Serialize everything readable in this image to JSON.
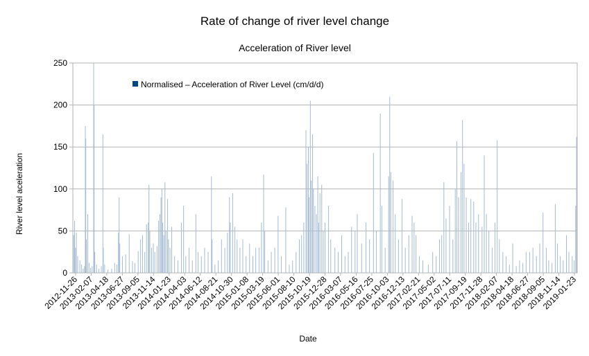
{
  "chart_data": {
    "type": "bar",
    "title": "Rate of change of river level change",
    "subtitle": "Acceleration of River level",
    "xlabel": "Date",
    "ylabel": "River level aceleration",
    "ylim": [
      0,
      250
    ],
    "y_ticks": [
      0,
      50,
      100,
      150,
      200,
      250
    ],
    "x_start": "2012-11-26",
    "x_end": "2019-03-15",
    "grid": true,
    "legend_position": "top-left",
    "bar_color": "#a4bbd3",
    "legend_color": "#004586",
    "x_tick_labels": [
      "2012-11-26",
      "2013-02-07",
      "2013-04-18",
      "2013-06-27",
      "2013-09-05",
      "2013-11-14",
      "2014-01-23",
      "2014-04-03",
      "2014-06-12",
      "2014-08-21",
      "2014-10-30",
      "2015-01-08",
      "2015-03-19",
      "2015-06-01",
      "2015-08-10",
      "2015-10-19",
      "2015-12-28",
      "2016-03-07",
      "2016-05-16",
      "2016-07-25",
      "2016-10-03",
      "2016-12-13",
      "2017-02-21",
      "2017-05-02",
      "2017-07-11",
      "2017-09-19",
      "2017-11-28",
      "2018-02-07",
      "2018-04-18",
      "2018-06-27",
      "2018-09-05",
      "2018-11-14",
      "2019-01-23"
    ],
    "series": [
      {
        "name": "Normalised – Acceleration of River Level (cm/d/d)",
        "points": [
          [
            "2012-11-30",
            45
          ],
          [
            "2012-12-04",
            62
          ],
          [
            "2012-12-08",
            30
          ],
          [
            "2012-12-12",
            48
          ],
          [
            "2012-12-18",
            20
          ],
          [
            "2012-12-28",
            15
          ],
          [
            "2013-01-05",
            10
          ],
          [
            "2013-01-12",
            5
          ],
          [
            "2013-01-18",
            8
          ],
          [
            "2013-01-22",
            175
          ],
          [
            "2013-01-24",
            160
          ],
          [
            "2013-01-27",
            40
          ],
          [
            "2013-02-02",
            70
          ],
          [
            "2013-02-08",
            12
          ],
          [
            "2013-02-15",
            6
          ],
          [
            "2013-02-22",
            8
          ],
          [
            "2013-03-01",
            250
          ],
          [
            "2013-03-03",
            200
          ],
          [
            "2013-03-06",
            25
          ],
          [
            "2013-03-14",
            10
          ],
          [
            "2013-03-25",
            5
          ],
          [
            "2013-04-05",
            8
          ],
          [
            "2013-04-12",
            165
          ],
          [
            "2013-04-14",
            30
          ],
          [
            "2013-04-20",
            10
          ],
          [
            "2013-05-05",
            4
          ],
          [
            "2013-05-22",
            5
          ],
          [
            "2013-06-05",
            12
          ],
          [
            "2013-06-15",
            10
          ],
          [
            "2013-06-22",
            48
          ],
          [
            "2013-06-25",
            90
          ],
          [
            "2013-06-28",
            35
          ],
          [
            "2013-07-10",
            20
          ],
          [
            "2013-07-25",
            22
          ],
          [
            "2013-08-10",
            46
          ],
          [
            "2013-08-25",
            14
          ],
          [
            "2013-09-05",
            12
          ],
          [
            "2013-09-20",
            26
          ],
          [
            "2013-10-01",
            40
          ],
          [
            "2013-10-10",
            45
          ],
          [
            "2013-10-20",
            25
          ],
          [
            "2013-10-28",
            58
          ],
          [
            "2013-11-05",
            60
          ],
          [
            "2013-11-08",
            105
          ],
          [
            "2013-11-12",
            50
          ],
          [
            "2013-11-20",
            30
          ],
          [
            "2013-11-28",
            35
          ],
          [
            "2013-12-05",
            25
          ],
          [
            "2013-12-15",
            32
          ],
          [
            "2013-12-22",
            62
          ],
          [
            "2013-12-28",
            70
          ],
          [
            "2014-01-02",
            90
          ],
          [
            "2014-01-06",
            100
          ],
          [
            "2014-01-10",
            60
          ],
          [
            "2014-01-15",
            45
          ],
          [
            "2014-01-20",
            108
          ],
          [
            "2014-01-25",
            50
          ],
          [
            "2014-02-01",
            88
          ],
          [
            "2014-02-05",
            40
          ],
          [
            "2014-02-12",
            30
          ],
          [
            "2014-02-20",
            55
          ],
          [
            "2014-03-05",
            20
          ],
          [
            "2014-03-20",
            15
          ],
          [
            "2014-04-05",
            60
          ],
          [
            "2014-04-15",
            80
          ],
          [
            "2014-04-25",
            20
          ],
          [
            "2014-05-10",
            30
          ],
          [
            "2014-05-25",
            15
          ],
          [
            "2014-06-10",
            70
          ],
          [
            "2014-06-20",
            25
          ],
          [
            "2014-07-05",
            20
          ],
          [
            "2014-07-20",
            30
          ],
          [
            "2014-08-05",
            25
          ],
          [
            "2014-08-20",
            115
          ],
          [
            "2014-08-23",
            40
          ],
          [
            "2014-09-05",
            10
          ],
          [
            "2014-09-20",
            15
          ],
          [
            "2014-10-05",
            40
          ],
          [
            "2014-10-20",
            30
          ],
          [
            "2014-11-01",
            48
          ],
          [
            "2014-11-10",
            90
          ],
          [
            "2014-11-14",
            60
          ],
          [
            "2014-11-25",
            95
          ],
          [
            "2014-12-05",
            55
          ],
          [
            "2014-12-15",
            40
          ],
          [
            "2014-12-28",
            30
          ],
          [
            "2015-01-10",
            40
          ],
          [
            "2015-01-25",
            20
          ],
          [
            "2015-02-10",
            35
          ],
          [
            "2015-02-25",
            20
          ],
          [
            "2015-03-10",
            30
          ],
          [
            "2015-03-25",
            30
          ],
          [
            "2015-04-05",
            60
          ],
          [
            "2015-04-15",
            117
          ],
          [
            "2015-04-20",
            50
          ],
          [
            "2015-05-05",
            15
          ],
          [
            "2015-05-20",
            25
          ],
          [
            "2015-06-05",
            30
          ],
          [
            "2015-06-20",
            68
          ],
          [
            "2015-07-05",
            20
          ],
          [
            "2015-07-25",
            78
          ],
          [
            "2015-08-10",
            10
          ],
          [
            "2015-08-25",
            15
          ],
          [
            "2015-09-10",
            25
          ],
          [
            "2015-09-25",
            40
          ],
          [
            "2015-10-05",
            45
          ],
          [
            "2015-10-15",
            60
          ],
          [
            "2015-10-25",
            170
          ],
          [
            "2015-10-30",
            130
          ],
          [
            "2015-11-05",
            150
          ],
          [
            "2015-11-08",
            90
          ],
          [
            "2015-11-14",
            205
          ],
          [
            "2015-11-18",
            110
          ],
          [
            "2015-11-24",
            165
          ],
          [
            "2015-11-28",
            100
          ],
          [
            "2015-12-05",
            80
          ],
          [
            "2015-12-12",
            70
          ],
          [
            "2015-12-18",
            115
          ],
          [
            "2015-12-22",
            60
          ],
          [
            "2015-12-28",
            95
          ],
          [
            "2016-01-05",
            105
          ],
          [
            "2016-01-12",
            50
          ],
          [
            "2016-01-20",
            60
          ],
          [
            "2016-02-05",
            80
          ],
          [
            "2016-02-15",
            40
          ],
          [
            "2016-03-05",
            30
          ],
          [
            "2016-03-20",
            25
          ],
          [
            "2016-04-05",
            45
          ],
          [
            "2016-04-20",
            20
          ],
          [
            "2016-05-05",
            25
          ],
          [
            "2016-05-20",
            55
          ],
          [
            "2016-06-05",
            50
          ],
          [
            "2016-06-15",
            70
          ],
          [
            "2016-07-05",
            35
          ],
          [
            "2016-07-25",
            60
          ],
          [
            "2016-08-10",
            40
          ],
          [
            "2016-08-28",
            143
          ],
          [
            "2016-09-10",
            50
          ],
          [
            "2016-09-28",
            190
          ],
          [
            "2016-10-05",
            80
          ],
          [
            "2016-10-20",
            30
          ],
          [
            "2016-11-05",
            115
          ],
          [
            "2016-11-10",
            210
          ],
          [
            "2016-11-15",
            120
          ],
          [
            "2016-11-25",
            110
          ],
          [
            "2016-12-05",
            70
          ],
          [
            "2016-12-20",
            40
          ],
          [
            "2017-01-05",
            88
          ],
          [
            "2017-01-20",
            30
          ],
          [
            "2017-02-05",
            45
          ],
          [
            "2017-02-20",
            68
          ],
          [
            "2017-03-01",
            60
          ],
          [
            "2017-03-10",
            45
          ],
          [
            "2017-03-25",
            20
          ],
          [
            "2017-04-10",
            15
          ],
          [
            "2017-05-05",
            10
          ],
          [
            "2017-05-25",
            25
          ],
          [
            "2017-06-10",
            20
          ],
          [
            "2017-06-25",
            40
          ],
          [
            "2017-07-05",
            45
          ],
          [
            "2017-07-15",
            108
          ],
          [
            "2017-07-25",
            65
          ],
          [
            "2017-08-10",
            80
          ],
          [
            "2017-08-25",
            40
          ],
          [
            "2017-09-05",
            100
          ],
          [
            "2017-09-12",
            157
          ],
          [
            "2017-09-20",
            90
          ],
          [
            "2017-10-01",
            120
          ],
          [
            "2017-10-08",
            182
          ],
          [
            "2017-10-15",
            130
          ],
          [
            "2017-10-25",
            90
          ],
          [
            "2017-11-05",
            60
          ],
          [
            "2017-11-15",
            88
          ],
          [
            "2017-11-28",
            85
          ],
          [
            "2017-12-08",
            60
          ],
          [
            "2017-12-20",
            70
          ],
          [
            "2018-01-05",
            55
          ],
          [
            "2018-01-15",
            140
          ],
          [
            "2018-01-25",
            70
          ],
          [
            "2018-02-05",
            50
          ],
          [
            "2018-02-20",
            30
          ],
          [
            "2018-03-05",
            60
          ],
          [
            "2018-03-15",
            158
          ],
          [
            "2018-03-25",
            40
          ],
          [
            "2018-04-10",
            25
          ],
          [
            "2018-04-25",
            20
          ],
          [
            "2018-05-10",
            10
          ],
          [
            "2018-05-25",
            35
          ],
          [
            "2018-06-10",
            8
          ],
          [
            "2018-06-25",
            15
          ],
          [
            "2018-07-10",
            12
          ],
          [
            "2018-07-25",
            25
          ],
          [
            "2018-08-10",
            25
          ],
          [
            "2018-08-25",
            30
          ],
          [
            "2018-09-10",
            20
          ],
          [
            "2018-09-25",
            35
          ],
          [
            "2018-10-10",
            72
          ],
          [
            "2018-10-25",
            30
          ],
          [
            "2018-11-05",
            15
          ],
          [
            "2018-11-20",
            12
          ],
          [
            "2018-12-05",
            82
          ],
          [
            "2018-12-15",
            35
          ],
          [
            "2018-12-28",
            20
          ],
          [
            "2019-01-10",
            15
          ],
          [
            "2019-01-25",
            45
          ],
          [
            "2019-02-05",
            25
          ],
          [
            "2019-02-20",
            20
          ],
          [
            "2019-03-01",
            15
          ],
          [
            "2019-03-08",
            80
          ],
          [
            "2019-03-12",
            162
          ]
        ]
      }
    ]
  }
}
